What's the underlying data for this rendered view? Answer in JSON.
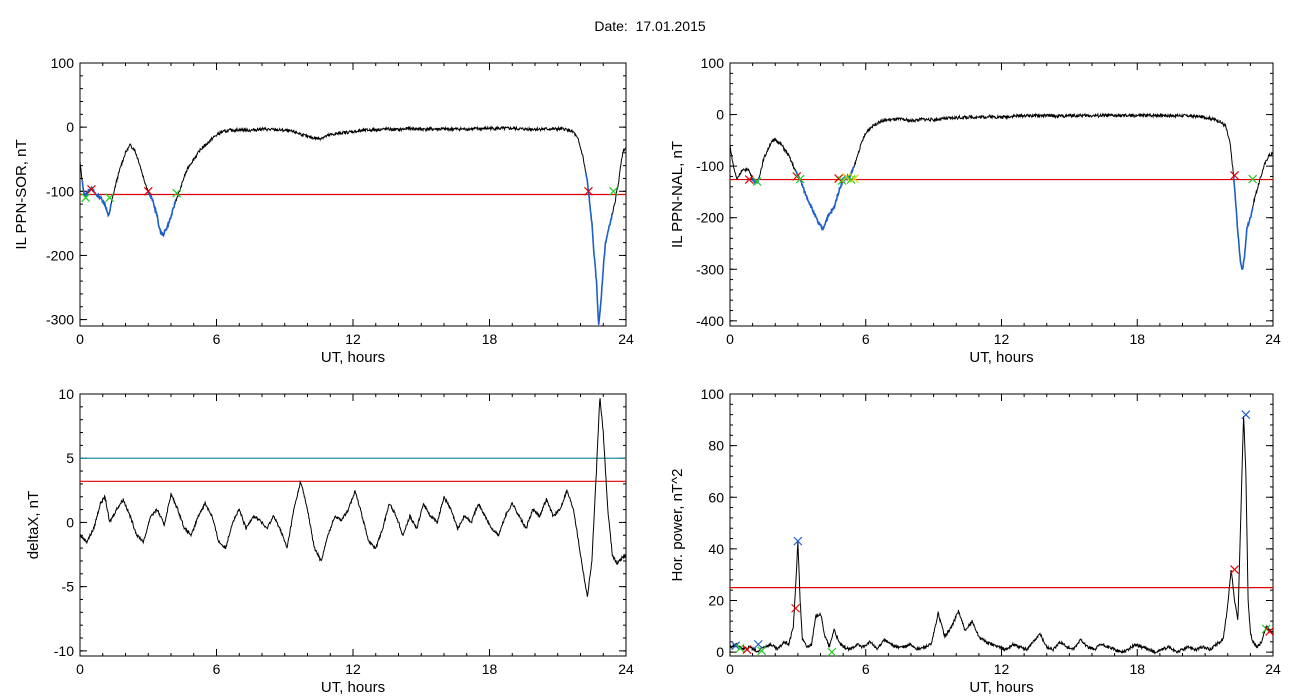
{
  "page": {
    "title": "Date:  17.01.2015"
  },
  "colors": {
    "trace": "#000000",
    "highlight": "#1f5fc8",
    "threshold_red": "#e00000",
    "threshold_teal": "#1f8f9f",
    "marker_red": "#e00000",
    "marker_blue": "#1f5fc8",
    "marker_green": "#22cc22",
    "marker_yellow": "#d8d800"
  },
  "chart_data": [
    {
      "id": "sor",
      "type": "line",
      "title": "",
      "xlabel": "UT, hours",
      "ylabel": "IL PPN-SOR, nT",
      "xlim": [
        0,
        24
      ],
      "ylim": [
        -310,
        100
      ],
      "xticks": [
        0,
        6,
        12,
        18,
        24
      ],
      "yticks": [
        100,
        0,
        -100,
        -200,
        -300
      ],
      "ytick_labels": [
        "100",
        "0",
        "-100",
        "-200",
        "-300"
      ],
      "series": [
        {
          "role": "trace",
          "x": [
            0,
            0.1,
            0.2,
            0.35,
            0.5,
            0.7,
            0.9,
            1.1,
            1.25,
            1.4,
            1.6,
            1.8,
            2.0,
            2.2,
            2.4,
            2.6,
            2.8,
            3.0,
            3.2,
            3.4,
            3.5,
            3.65,
            3.8,
            4.0,
            4.2,
            4.4,
            4.6,
            4.8,
            5.0,
            5.3,
            5.6,
            5.9,
            6.2,
            6.6,
            7,
            7.5,
            8,
            8.5,
            9,
            9.5,
            10,
            10.5,
            11,
            11.5,
            12,
            12.5,
            13,
            13.5,
            14,
            14.5,
            15,
            16,
            17,
            18,
            19,
            19.5,
            20,
            20.5,
            21,
            21.3,
            21.5,
            21.7,
            21.9,
            22.1,
            22.3,
            22.5,
            22.6,
            22.7,
            22.8,
            22.9,
            23.0,
            23.1,
            23.3,
            23.5,
            23.7,
            23.8,
            23.9,
            24
          ],
          "y": [
            -55,
            -85,
            -108,
            -100,
            -95,
            -105,
            -110,
            -120,
            -140,
            -115,
            -85,
            -60,
            -40,
            -28,
            -35,
            -55,
            -80,
            -100,
            -115,
            -140,
            -160,
            -168,
            -158,
            -140,
            -115,
            -98,
            -75,
            -60,
            -50,
            -35,
            -25,
            -15,
            -8,
            -5,
            -4,
            -5,
            -3,
            -4,
            -5,
            -8,
            -15,
            -18,
            -12,
            -9,
            -7,
            -5,
            -4,
            -3,
            -4,
            -2,
            -3,
            -3,
            -3,
            -2,
            -2,
            -3,
            -3,
            -3,
            -3,
            -3,
            -5,
            -8,
            -20,
            -45,
            -85,
            -150,
            -200,
            -240,
            -310,
            -270,
            -220,
            -180,
            -150,
            -120,
            -80,
            -50,
            -35,
            -30
          ]
        },
        {
          "role": "highlight",
          "segments": [
            [
              0.1,
              1.4
            ],
            [
              3.0,
              4.2
            ],
            [
              22.2,
              23.4
            ]
          ]
        }
      ],
      "threshold_lines": [
        {
          "value": -105,
          "color": "#e00000"
        }
      ],
      "markers": [
        {
          "x": 0.25,
          "y": -110,
          "color": "#22cc22"
        },
        {
          "x": 0.5,
          "y": -97,
          "color": "#e00000"
        },
        {
          "x": 1.3,
          "y": -110,
          "color": "#22cc22"
        },
        {
          "x": 3.0,
          "y": -100,
          "color": "#e00000"
        },
        {
          "x": 4.25,
          "y": -103,
          "color": "#22cc22"
        },
        {
          "x": 22.35,
          "y": -100,
          "color": "#e00000"
        },
        {
          "x": 23.45,
          "y": -100,
          "color": "#22cc22"
        }
      ]
    },
    {
      "id": "nal",
      "type": "line",
      "title": "",
      "xlabel": "UT, hours",
      "ylabel": "IL PPN-NAL, nT",
      "xlim": [
        0,
        24
      ],
      "ylim": [
        -410,
        100
      ],
      "xticks": [
        0,
        6,
        12,
        18,
        24
      ],
      "yticks": [
        100,
        0,
        -100,
        -200,
        -300,
        -400
      ],
      "ytick_labels": [
        "100",
        "0",
        "-100",
        "-200",
        "-300",
        "-400"
      ],
      "series": [
        {
          "role": "trace",
          "x": [
            0,
            0.15,
            0.3,
            0.5,
            0.8,
            1.0,
            1.2,
            1.5,
            1.8,
            2.0,
            2.3,
            2.6,
            2.9,
            3.1,
            3.3,
            3.6,
            3.9,
            4.1,
            4.3,
            4.6,
            4.8,
            5.0,
            5.3,
            5.5,
            5.7,
            5.9,
            6.1,
            6.3,
            6.6,
            7,
            7.5,
            8,
            8.5,
            9,
            9.5,
            10,
            10.5,
            11,
            11.5,
            12,
            12.5,
            13,
            13.5,
            14,
            14.5,
            15,
            16,
            17,
            18,
            19,
            19.5,
            20,
            20.5,
            21,
            21.3,
            21.6,
            21.9,
            22.1,
            22.25,
            22.35,
            22.45,
            22.55,
            22.65,
            22.75,
            22.85,
            23.0,
            23.2,
            23.4,
            23.6,
            23.8,
            24
          ],
          "y": [
            -60,
            -100,
            -125,
            -110,
            -105,
            -125,
            -135,
            -85,
            -55,
            -48,
            -60,
            -80,
            -110,
            -125,
            -150,
            -180,
            -210,
            -222,
            -200,
            -180,
            -150,
            -125,
            -120,
            -100,
            -70,
            -45,
            -30,
            -22,
            -14,
            -10,
            -9,
            -12,
            -9,
            -10,
            -8,
            -6,
            -5,
            -5,
            -4,
            -5,
            -3,
            -2,
            -2,
            -2,
            -3,
            -2,
            -2,
            -2,
            -2,
            -1,
            -2,
            -2,
            -3,
            -5,
            -8,
            -12,
            -22,
            -55,
            -115,
            -170,
            -230,
            -280,
            -305,
            -270,
            -220,
            -200,
            -160,
            -130,
            -100,
            -80,
            -75
          ]
        },
        {
          "role": "highlight",
          "segments": [
            [
              1.0,
              1.3
            ],
            [
              2.9,
              5.5
            ],
            [
              22.25,
              23.1
            ]
          ]
        }
      ],
      "threshold_lines": [
        {
          "value": -126,
          "color": "#e00000"
        }
      ],
      "markers": [
        {
          "x": 0.85,
          "y": -126,
          "color": "#e00000"
        },
        {
          "x": 1.2,
          "y": -130,
          "color": "#22cc22"
        },
        {
          "x": 2.95,
          "y": -120,
          "color": "#e00000"
        },
        {
          "x": 3.1,
          "y": -125,
          "color": "#22cc22"
        },
        {
          "x": 4.8,
          "y": -124,
          "color": "#e00000"
        },
        {
          "x": 4.95,
          "y": -128,
          "color": "#22cc22"
        },
        {
          "x": 5.15,
          "y": -122,
          "color": "#d8d800"
        },
        {
          "x": 5.35,
          "y": -126,
          "color": "#22cc22"
        },
        {
          "x": 5.5,
          "y": -124,
          "color": "#d8d800"
        },
        {
          "x": 22.3,
          "y": -118,
          "color": "#e00000"
        },
        {
          "x": 23.1,
          "y": -125,
          "color": "#22cc22"
        }
      ]
    },
    {
      "id": "deltax",
      "type": "line",
      "title": "",
      "xlabel": "UT, hours",
      "ylabel": "deltaX, nT",
      "xlim": [
        0,
        24
      ],
      "ylim": [
        -10.4,
        10
      ],
      "xticks": [
        0,
        6,
        12,
        18,
        24
      ],
      "yticks": [
        10,
        5,
        0,
        -5,
        -10
      ],
      "ytick_labels": [
        "10",
        "5",
        "0",
        "-5",
        "-10"
      ],
      "series": [
        {
          "role": "trace",
          "x": [
            0,
            0.3,
            0.6,
            0.9,
            1.1,
            1.3,
            1.6,
            1.9,
            2.2,
            2.5,
            2.8,
            3.1,
            3.4,
            3.7,
            4.0,
            4.3,
            4.6,
            4.9,
            5.2,
            5.5,
            5.8,
            6.1,
            6.4,
            6.7,
            7.0,
            7.3,
            7.6,
            7.9,
            8.2,
            8.5,
            8.8,
            9.1,
            9.4,
            9.7,
            10.0,
            10.3,
            10.6,
            10.9,
            11.2,
            11.5,
            11.8,
            12.1,
            12.4,
            12.7,
            13.0,
            13.3,
            13.6,
            13.9,
            14.2,
            14.5,
            14.8,
            15.1,
            15.4,
            15.7,
            16.0,
            16.3,
            16.6,
            16.9,
            17.2,
            17.5,
            17.8,
            18.1,
            18.4,
            18.7,
            19.0,
            19.3,
            19.6,
            19.9,
            20.2,
            20.5,
            20.8,
            21.1,
            21.4,
            21.7,
            22.0,
            22.3,
            22.5,
            22.7,
            22.85,
            23.0,
            23.2,
            23.4,
            23.6,
            23.8,
            24
          ],
          "y": [
            -1,
            -1.5,
            -0.5,
            1.5,
            2,
            0,
            1,
            1.8,
            0.5,
            -1,
            -1.5,
            0.5,
            1,
            -0.2,
            2.2,
            1,
            -0.5,
            -1,
            0.5,
            1.5,
            0.5,
            -1.5,
            -2,
            0,
            1,
            -0.5,
            0.5,
            0.2,
            -0.5,
            0.5,
            -0.5,
            -2,
            1,
            3.2,
            1,
            -2,
            -3,
            -1,
            0.5,
            0.2,
            1,
            2.5,
            0.5,
            -1.5,
            -2,
            -0.5,
            1.5,
            0.5,
            -1,
            0.5,
            -0.5,
            1.5,
            0.5,
            0,
            2,
            1,
            -0.5,
            0.5,
            0,
            1.5,
            0.5,
            -0.5,
            -1,
            0.5,
            1.5,
            0.5,
            -0.5,
            1,
            0.5,
            1.8,
            0.5,
            1,
            2.5,
            1,
            -2.5,
            -5.8,
            -3,
            4,
            9.8,
            7,
            1,
            -2.5,
            -3.2,
            -2.8,
            -2.5
          ]
        }
      ],
      "threshold_lines": [
        {
          "value": 5,
          "color": "#1f8f9f"
        },
        {
          "value": 3.2,
          "color": "#e00000"
        }
      ],
      "markers": []
    },
    {
      "id": "power",
      "type": "line",
      "title": "",
      "xlabel": "UT, hours",
      "ylabel": "Hor. power, nT^2",
      "xlim": [
        0,
        24
      ],
      "ylim": [
        -1.5,
        100
      ],
      "xticks": [
        0,
        6,
        12,
        18,
        24
      ],
      "yticks": [
        100,
        80,
        60,
        40,
        20,
        0
      ],
      "ytick_labels": [
        "100",
        "80",
        "60",
        "40",
        "20",
        "0"
      ],
      "series": [
        {
          "role": "trace",
          "x": [
            0,
            0.3,
            0.6,
            0.9,
            1.2,
            1.5,
            1.8,
            2.1,
            2.4,
            2.6,
            2.8,
            2.9,
            3.0,
            3.1,
            3.2,
            3.4,
            3.6,
            3.8,
            4.0,
            4.2,
            4.4,
            4.6,
            4.8,
            5.0,
            5.3,
            5.6,
            5.9,
            6.2,
            6.5,
            6.8,
            7.1,
            7.4,
            7.7,
            8.0,
            8.3,
            8.6,
            8.9,
            9.2,
            9.5,
            9.8,
            10.1,
            10.4,
            10.7,
            11.0,
            11.3,
            11.6,
            11.9,
            12.2,
            12.5,
            12.8,
            13.1,
            13.4,
            13.7,
            14.0,
            14.3,
            14.6,
            14.9,
            15.2,
            15.5,
            15.8,
            16.1,
            16.4,
            16.7,
            17.0,
            17.3,
            17.6,
            17.9,
            18.2,
            18.5,
            18.8,
            19.1,
            19.4,
            19.7,
            20.0,
            20.3,
            20.6,
            20.9,
            21.2,
            21.5,
            21.8,
            22.0,
            22.15,
            22.3,
            22.45,
            22.6,
            22.7,
            22.8,
            22.9,
            23.0,
            23.1,
            23.3,
            23.5,
            23.7,
            23.9,
            24
          ],
          "y": [
            2,
            3,
            1,
            2,
            0,
            2,
            3,
            1,
            4,
            3,
            10,
            25,
            43,
            20,
            5,
            2,
            3,
            14,
            15,
            6,
            2,
            9,
            4,
            2,
            1,
            3,
            2,
            4,
            1,
            5,
            3,
            2,
            2,
            3,
            1,
            2,
            3,
            15,
            6,
            10,
            16,
            8,
            12,
            6,
            4,
            3,
            2,
            1,
            3,
            2,
            1,
            4,
            7,
            2,
            1,
            4,
            2,
            1,
            5,
            2,
            1,
            3,
            2,
            1,
            0,
            1,
            3,
            2,
            1,
            0,
            1,
            2,
            0,
            1,
            2,
            1,
            2,
            1,
            3,
            5,
            18,
            32,
            20,
            12,
            60,
            92,
            70,
            20,
            8,
            4,
            2,
            4,
            10,
            8,
            7
          ]
        }
      ],
      "threshold_lines": [
        {
          "value": 25,
          "color": "#e00000"
        }
      ],
      "markers": [
        {
          "x": 0.25,
          "y": 2.5,
          "color": "#1f5fc8"
        },
        {
          "x": 0.45,
          "y": 1.5,
          "color": "#22cc22"
        },
        {
          "x": 0.75,
          "y": 1,
          "color": "#e00000"
        },
        {
          "x": 1.25,
          "y": 3,
          "color": "#1f5fc8"
        },
        {
          "x": 1.4,
          "y": 0.5,
          "color": "#22cc22"
        },
        {
          "x": 2.9,
          "y": 17,
          "color": "#e00000"
        },
        {
          "x": 3.0,
          "y": 43,
          "color": "#1f5fc8"
        },
        {
          "x": 4.5,
          "y": 0,
          "color": "#22cc22"
        },
        {
          "x": 22.3,
          "y": 32,
          "color": "#e00000"
        },
        {
          "x": 22.8,
          "y": 92,
          "color": "#1f5fc8"
        },
        {
          "x": 23.7,
          "y": 9,
          "color": "#22cc22"
        },
        {
          "x": 23.85,
          "y": 8,
          "color": "#e00000"
        }
      ]
    }
  ]
}
